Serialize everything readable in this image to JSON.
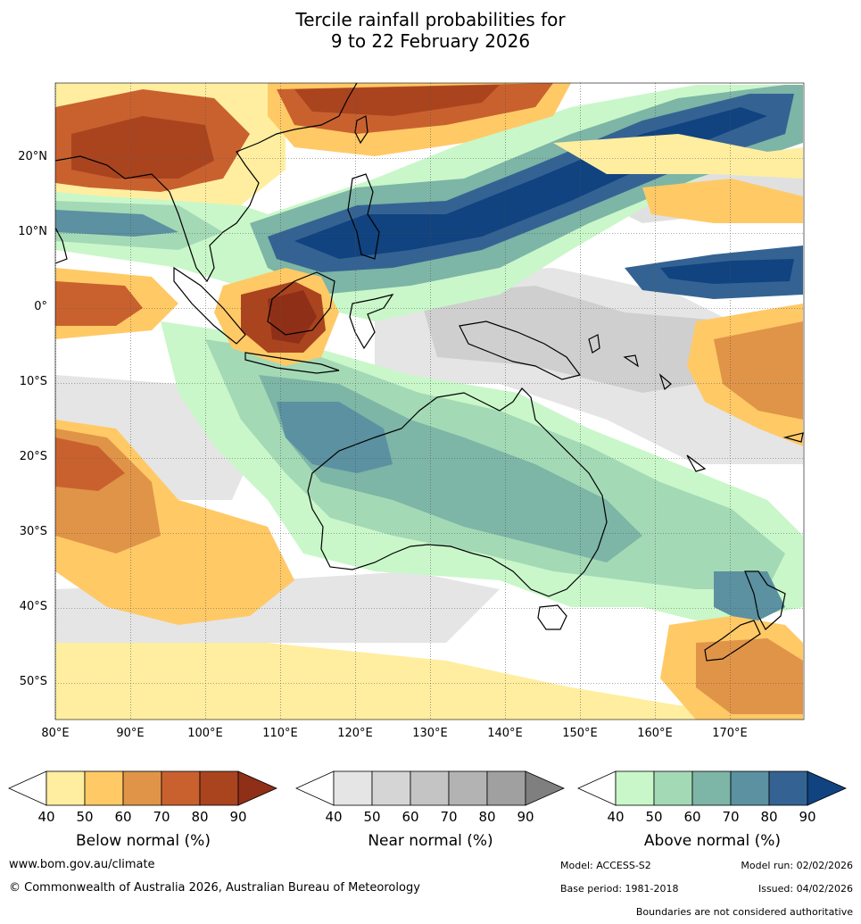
{
  "title": {
    "line1": "Tercile rainfall probabilities for",
    "line2": "9 to 22 February 2026"
  },
  "map": {
    "lat_labels": [
      "20°N",
      "10°N",
      "0°",
      "10°S",
      "20°S",
      "30°S",
      "40°S",
      "50°S"
    ],
    "lon_labels": [
      "80°E",
      "90°E",
      "100°E",
      "110°E",
      "120°E",
      "130°E",
      "140°E",
      "150°E",
      "160°E",
      "170°E"
    ],
    "colors": {
      "below": [
        "#ffeea0",
        "#ffc966",
        "#e09448",
        "#c9612f",
        "#a9441f",
        "#8f2f17"
      ],
      "near": [
        "#e5e5e5",
        "#d2d2d2",
        "#c2c2c2",
        "#b0b0b0",
        "#9e9e9e",
        "#7e7e7e"
      ],
      "above": [
        "#c9f7c9",
        "#a4d9b6",
        "#7db5a6",
        "#5b91a1",
        "#346393",
        "#10437f"
      ],
      "land_outline": "#000000",
      "border": "#888888"
    }
  },
  "legends": [
    {
      "caption": "Below normal (%)",
      "ticks": [
        "40",
        "50",
        "60",
        "70",
        "80",
        "90"
      ],
      "colors": [
        "#ffffff",
        "#ffeea0",
        "#ffc966",
        "#e09448",
        "#c9612f",
        "#a9441f",
        "#8f2f17"
      ]
    },
    {
      "caption": "Near normal (%)",
      "ticks": [
        "40",
        "50",
        "60",
        "70",
        "80",
        "90"
      ],
      "colors": [
        "#ffffff",
        "#e5e5e5",
        "#d5d5d5",
        "#c4c4c4",
        "#b3b3b3",
        "#a0a0a0",
        "#7f7f7f"
      ]
    },
    {
      "caption": "Above normal (%)",
      "ticks": [
        "40",
        "50",
        "60",
        "70",
        "80",
        "90"
      ],
      "colors": [
        "#ffffff",
        "#c9f7c9",
        "#a4d9b6",
        "#7db5a6",
        "#5b91a1",
        "#346393",
        "#10437f"
      ]
    }
  ],
  "footer": {
    "website": "www.bom.gov.au/climate",
    "copyright": "© Commonwealth of Australia 2026, Australian Bureau of Meteorology",
    "model": "Model: ACCESS-S2",
    "model_run": "Model run: 02/02/2026",
    "base_period": "Base period: 1981-2018",
    "issued": "Issued: 04/02/2026",
    "disclaimer": "Boundaries are not considered authoritative"
  }
}
